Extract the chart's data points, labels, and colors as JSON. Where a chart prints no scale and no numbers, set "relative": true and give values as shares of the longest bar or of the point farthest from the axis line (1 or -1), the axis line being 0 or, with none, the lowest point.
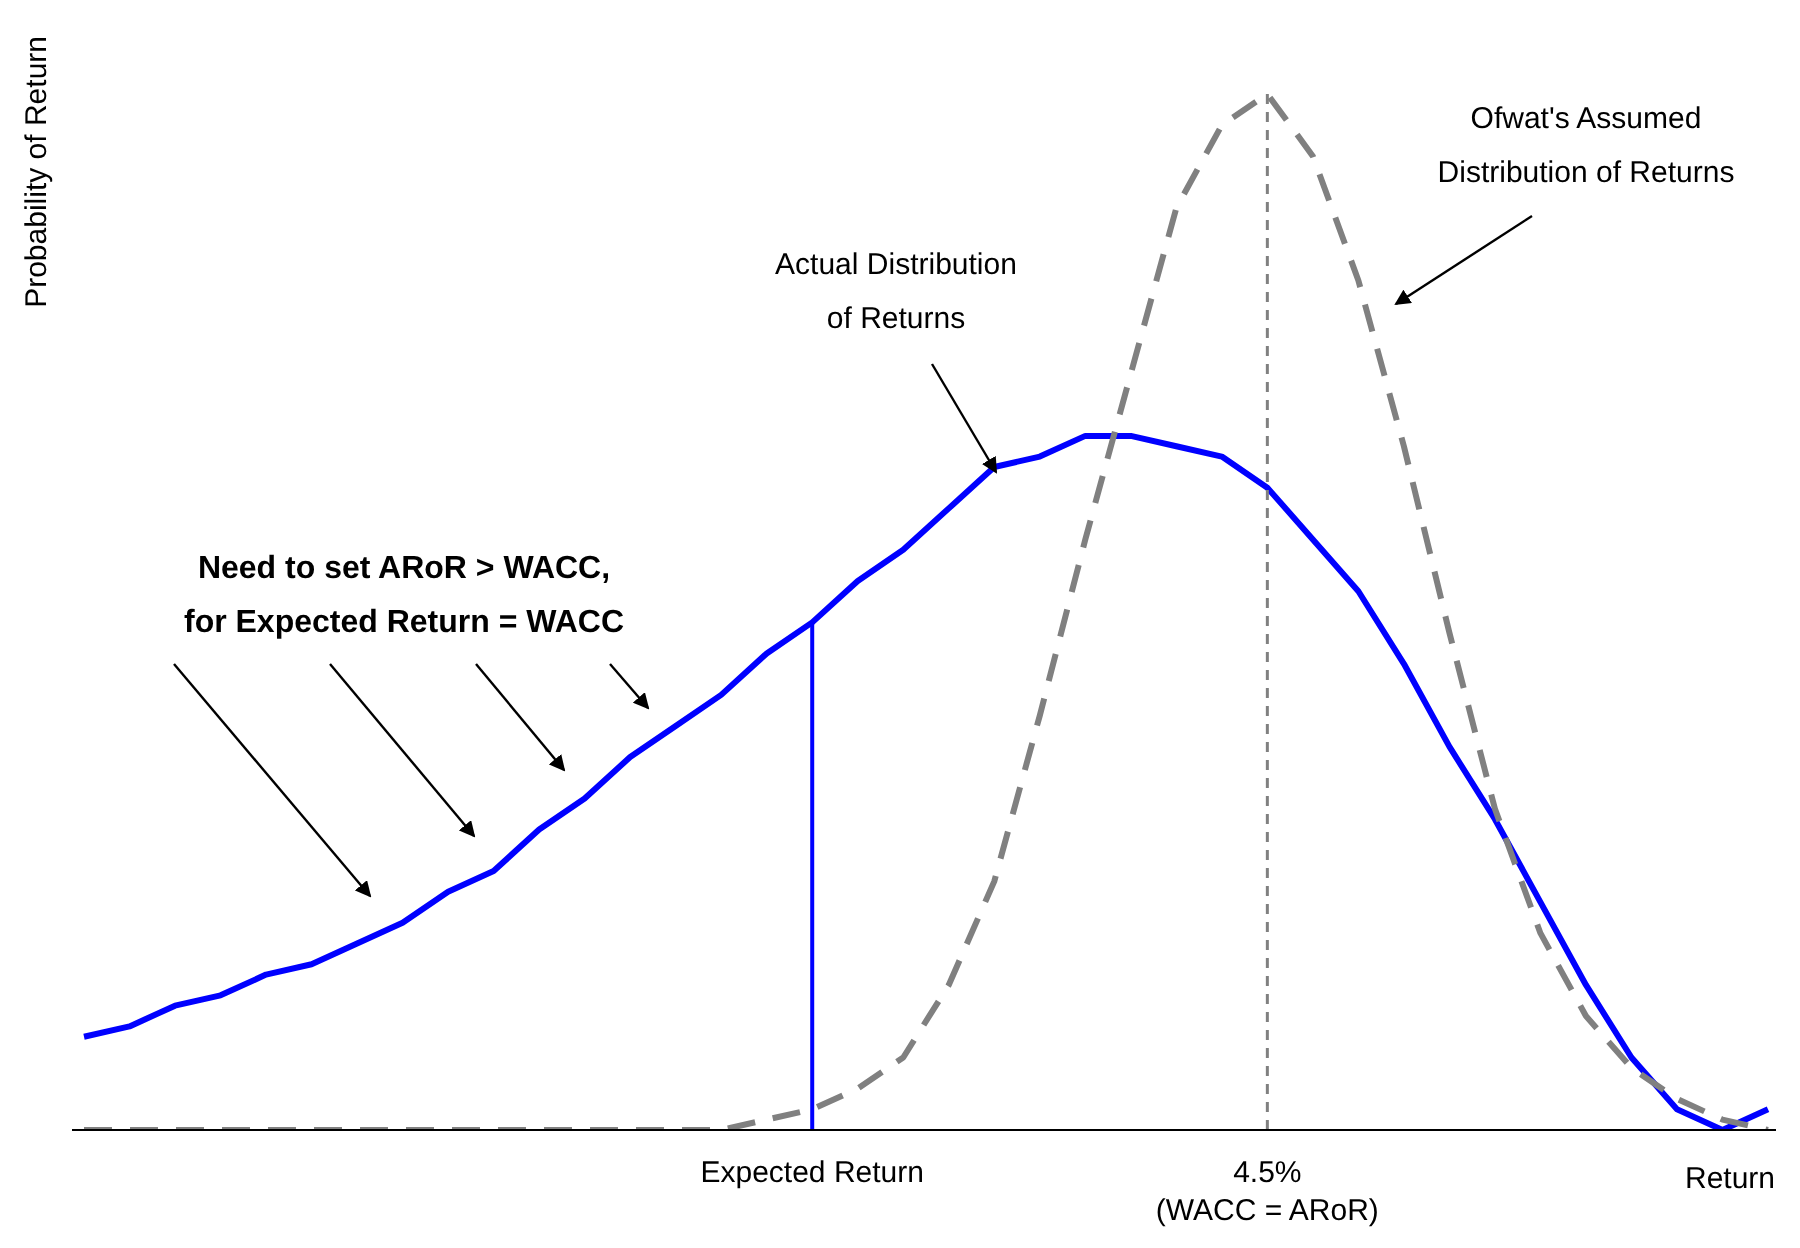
{
  "chart_data": {
    "type": "line",
    "relative": true,
    "ylabel": "Probability of Return",
    "xlabel": "Return",
    "marker": "none",
    "categories": [
      null,
      null,
      null,
      null,
      null,
      null,
      null,
      null,
      null,
      null,
      null,
      null,
      null,
      null,
      null,
      null,
      "Expected Return",
      null,
      null,
      null,
      null,
      null,
      null,
      null,
      null,
      null,
      "4.5%\n(WACC = ARoR)",
      null,
      null,
      null,
      null,
      null,
      null,
      null,
      null,
      null,
      null,
      null
    ],
    "series": [
      {
        "color": "#0000ff",
        "line_style": "solid",
        "values": [
          0.09,
          0.1,
          0.12,
          0.13,
          0.15,
          0.16,
          0.18,
          0.2,
          0.23,
          0.25,
          0.29,
          0.32,
          0.36,
          0.39,
          0.42,
          0.46,
          0.49,
          0.53,
          0.56,
          0.6,
          0.64,
          0.65,
          0.67,
          0.67,
          0.66,
          0.65,
          0.62,
          0.57,
          0.52,
          0.45,
          0.37,
          0.3,
          0.22,
          0.14,
          0.07,
          0.02,
          0,
          0.02
        ]
      },
      {
        "color": "#808080",
        "line_style": "dashed",
        "values": [
          0,
          0,
          0,
          0,
          0,
          0,
          0,
          0,
          0,
          0,
          0,
          0,
          0,
          0,
          0,
          0.01,
          0.02,
          0.04,
          0.07,
          0.14,
          0.24,
          0.4,
          0.57,
          0.73,
          0.89,
          0.97,
          1,
          0.94,
          0.82,
          0.66,
          0.48,
          0.31,
          0.19,
          0.11,
          0.06,
          0.03,
          0.01,
          0
        ]
      }
    ],
    "ref_lines": [
      {
        "axis": "x",
        "value": "Expected Return",
        "color": "#0000ff",
        "line_style": "solid"
      },
      {
        "axis": "x",
        "value": "4.5%\n(WACC = ARoR)",
        "color": "#808080",
        "line_style": "dashed"
      }
    ],
    "annotations": [
      "Need to set ARoR > WACC,\nfor Expected Return = WACC",
      "Actual Distribution\nof Returns",
      "Ofwat's Assumed\nDistribution of Returns"
    ]
  }
}
